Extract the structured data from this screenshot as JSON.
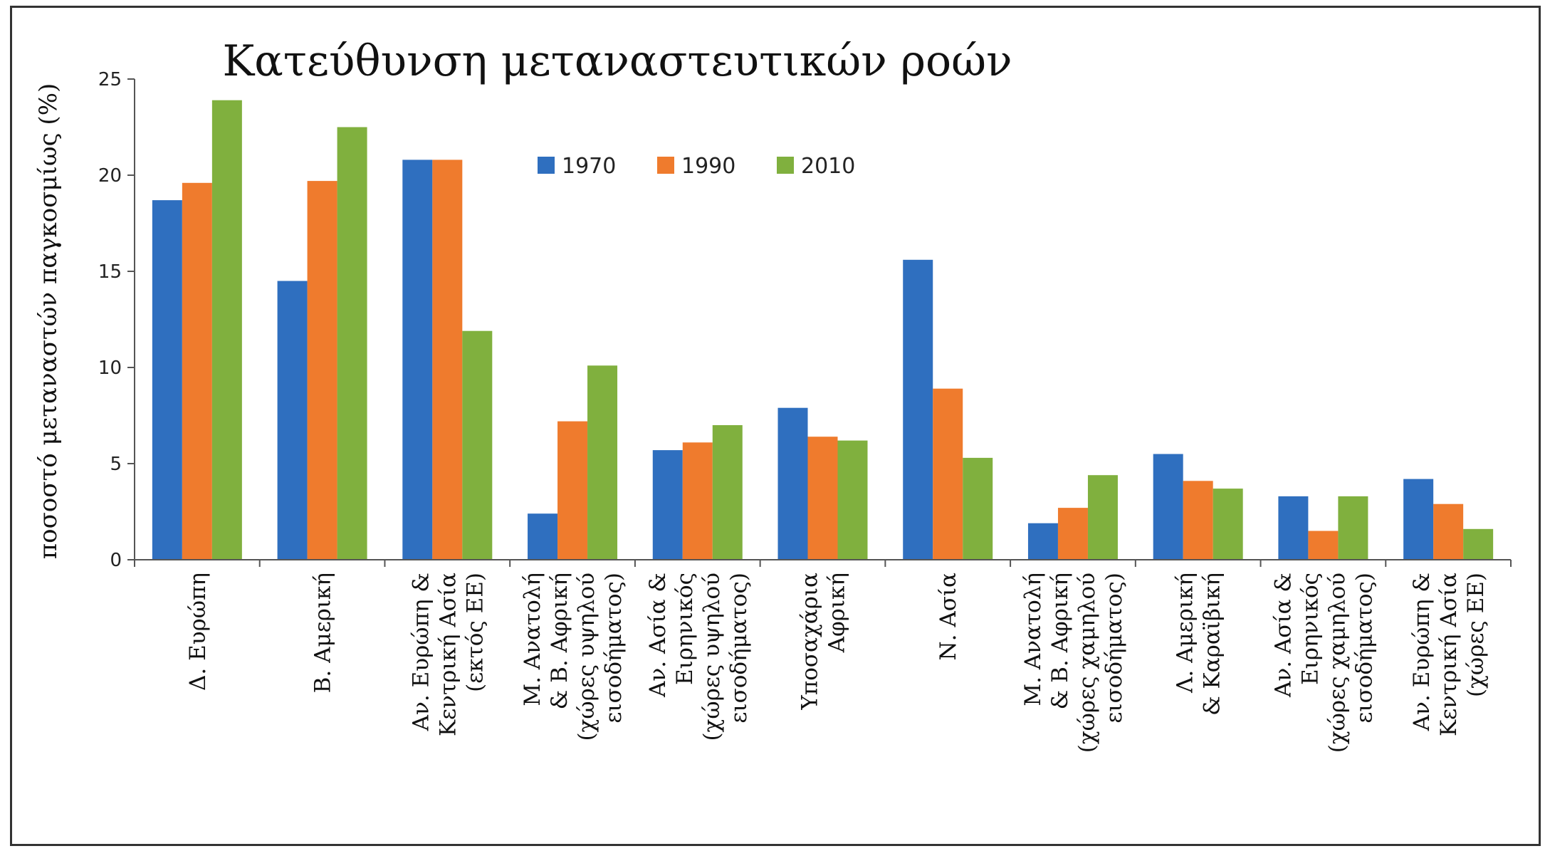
{
  "colors": {
    "1970": "#2f6fbf",
    "1990": "#ef7b2d",
    "2010": "#80b03e"
  },
  "chart_data": {
    "type": "bar",
    "title": "Κατεύθυνση μεταναστευτικών ροών",
    "ylabel": "ποσοστό μεταναστών παγκοσμίως (%)",
    "xlabel": "",
    "ylim": [
      0,
      25
    ],
    "yticks": [
      "0",
      "5",
      "10",
      "15",
      "20",
      "25"
    ],
    "grid": false,
    "legend_position": "top",
    "categories": [
      [
        "Δ. Ευρώπη"
      ],
      [
        "Β. Αμερική"
      ],
      [
        "Αν. Ευρώπη &",
        "Κεντρική Ασία",
        "(εκτός ΕΕ)"
      ],
      [
        "Μ. Ανατολή",
        "& Β. Αφρική",
        "(χώρες υψηλού",
        "εισοδήματος)"
      ],
      [
        "Αν. Ασία &",
        "Ειρηνικός",
        "(χώρες υψηλού",
        "εισοδήματος)"
      ],
      [
        "Υποσαχάρια",
        "Αφρική"
      ],
      [
        "Ν. Ασία"
      ],
      [
        "Μ. Ανατολή",
        "& Β. Αφρική",
        "(χώρες χαμηλού",
        "εισοδήματος)"
      ],
      [
        "Λ. Αμερική",
        "& Καραϊβική"
      ],
      [
        "Αν. Ασία &",
        "Ειρηνικός",
        "(χώρες χαμηλού",
        "εισοδήματος)"
      ],
      [
        "Αν. Ευρώπη &",
        "Κεντρική Ασία",
        "(χώρες ΕΕ)"
      ]
    ],
    "series": [
      {
        "name": "1970",
        "values": [
          18.7,
          14.5,
          20.8,
          2.4,
          5.7,
          7.9,
          15.6,
          1.9,
          5.5,
          3.3,
          4.2
        ]
      },
      {
        "name": "1990",
        "values": [
          19.6,
          19.7,
          20.8,
          7.2,
          6.1,
          6.4,
          8.9,
          2.7,
          4.1,
          1.5,
          2.9
        ]
      },
      {
        "name": "2010",
        "values": [
          23.9,
          22.5,
          11.9,
          10.1,
          7.0,
          6.2,
          5.3,
          4.4,
          3.7,
          3.3,
          1.6
        ]
      }
    ]
  }
}
